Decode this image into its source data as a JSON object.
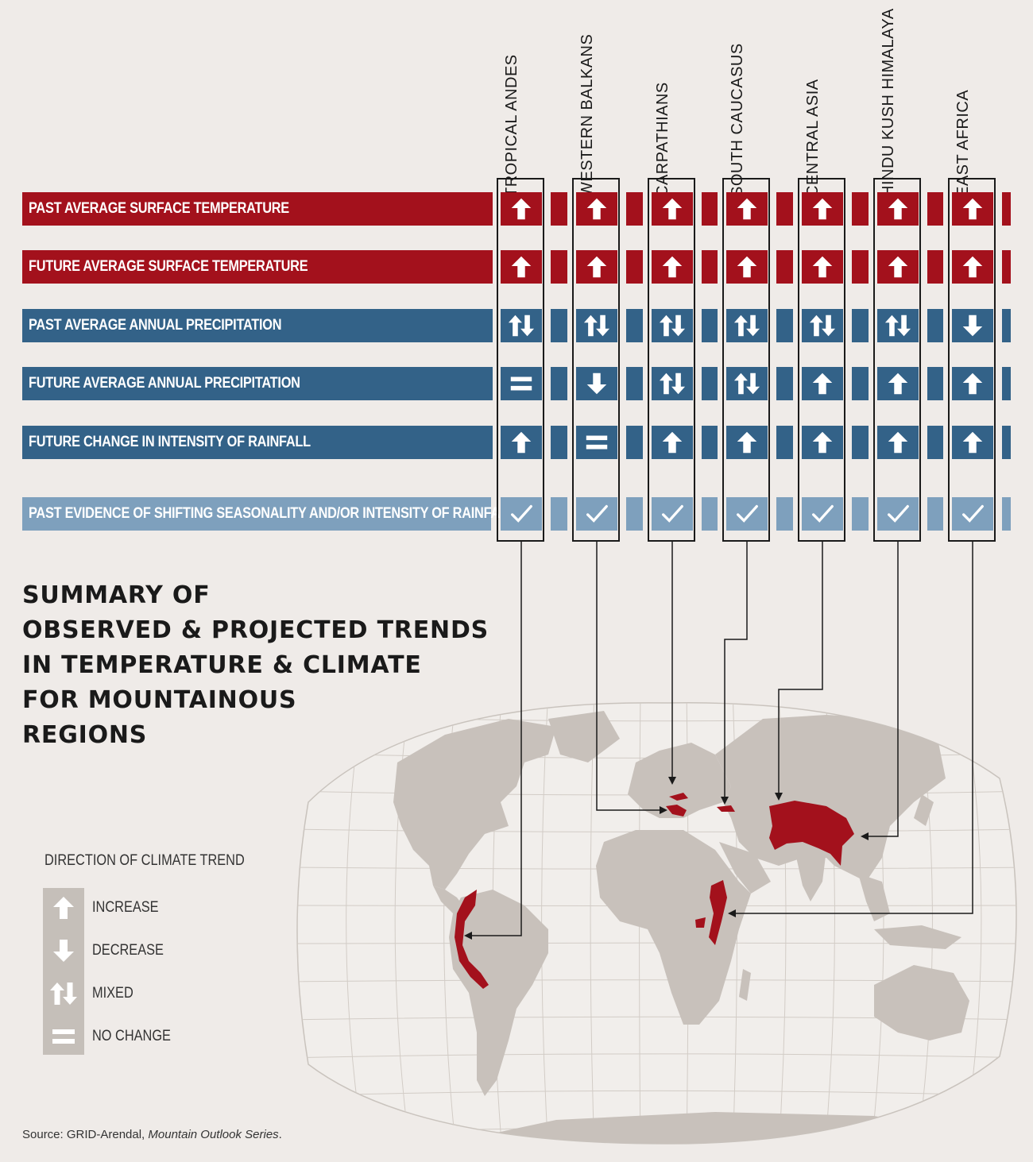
{
  "title_lines": [
    "SUMMARY OF",
    "OBSERVED & PROJECTED TRENDS",
    "IN TEMPERATURE & CLIMATE",
    "FOR MOUNTAINOUS",
    "REGIONS"
  ],
  "regions": [
    "TROPICAL ANDES",
    "WESTERN BALKANS",
    "CARPATHIANS",
    "SOUTH CAUCASUS",
    "CENTRAL ASIA",
    "HINDU KUSH HIMALAYA",
    "EAST AFRICA"
  ],
  "rows": [
    {
      "label": "PAST AVERAGE SURFACE TEMPERATURE",
      "color": "#a3111c",
      "values": [
        "increase",
        "increase",
        "increase",
        "increase",
        "increase",
        "increase",
        "increase"
      ]
    },
    {
      "label": "FUTURE AVERAGE SURFACE TEMPERATURE",
      "color": "#a3111c",
      "values": [
        "increase",
        "increase",
        "increase",
        "increase",
        "increase",
        "increase",
        "increase"
      ]
    },
    {
      "label": "PAST AVERAGE ANNUAL PRECIPITATION",
      "color": "#336288",
      "values": [
        "mixed",
        "mixed",
        "mixed",
        "mixed",
        "mixed",
        "mixed",
        "decrease"
      ]
    },
    {
      "label": "FUTURE AVERAGE ANNUAL PRECIPITATION",
      "color": "#336288",
      "values": [
        "no_change",
        "decrease",
        "mixed",
        "mixed",
        "increase",
        "increase",
        "increase"
      ]
    },
    {
      "label": "FUTURE CHANGE IN INTENSITY OF RAINFALL",
      "color": "#336288",
      "values": [
        "increase",
        "no_change",
        "increase",
        "increase",
        "increase",
        "increase",
        "increase"
      ]
    },
    {
      "label": "PAST EVIDENCE OF SHIFTING SEASONALITY AND/OR INTENSITY OF RAINFALL",
      "color": "#7ea0bd",
      "values": [
        "check",
        "check",
        "check",
        "check",
        "check",
        "check",
        "check"
      ]
    }
  ],
  "legend": {
    "title": "DIRECTION OF CLIMATE TREND",
    "items": [
      {
        "icon": "increase",
        "label": "INCREASE"
      },
      {
        "icon": "decrease",
        "label": "DECREASE"
      },
      {
        "icon": "mixed",
        "label": "MIXED"
      },
      {
        "icon": "no_change",
        "label": "NO CHANGE"
      }
    ]
  },
  "source": {
    "prefix": "Source: GRID-Arendal, ",
    "title": "Mountain Outlook Series",
    "suffix": "."
  },
  "colors": {
    "red": "#a3111c",
    "blue": "#336288",
    "light_blue": "#7ea0bd",
    "land": "#c8c1bb",
    "mountain": "#a3111c"
  }
}
